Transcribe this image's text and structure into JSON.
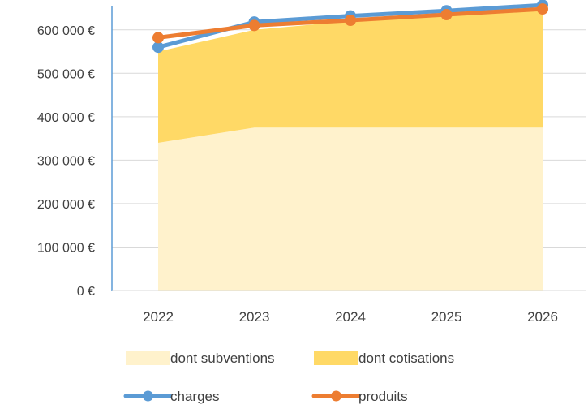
{
  "chart_data": {
    "type": "area",
    "categories": [
      "2022",
      "2023",
      "2024",
      "2025",
      "2026"
    ],
    "ylim": [
      0,
      650000
    ],
    "y_ticks": [
      0,
      100000,
      200000,
      300000,
      400000,
      500000,
      600000
    ],
    "y_tick_labels": [
      "0 €",
      "100 000 €",
      "200 000 €",
      "300 000 €",
      "400 000 €",
      "500 000 €",
      "600 000 €"
    ],
    "grid": true,
    "legend_position": "bottom",
    "series": [
      {
        "name": "dont subventions",
        "kind": "area",
        "color": "#FFF2CC",
        "values": [
          340000,
          375000,
          375000,
          375000,
          375000
        ]
      },
      {
        "name": "dont cotisations",
        "kind": "area",
        "color": "#FFD966",
        "values": [
          210000,
          225000,
          245000,
          260000,
          272000
        ]
      },
      {
        "name": "charges",
        "kind": "line",
        "color": "#5B9BD5",
        "values": [
          560000,
          618000,
          632000,
          644000,
          657000
        ]
      },
      {
        "name": "produits",
        "kind": "line",
        "color": "#ED7D31",
        "values": [
          582000,
          610000,
          622000,
          635000,
          648000
        ]
      }
    ]
  }
}
